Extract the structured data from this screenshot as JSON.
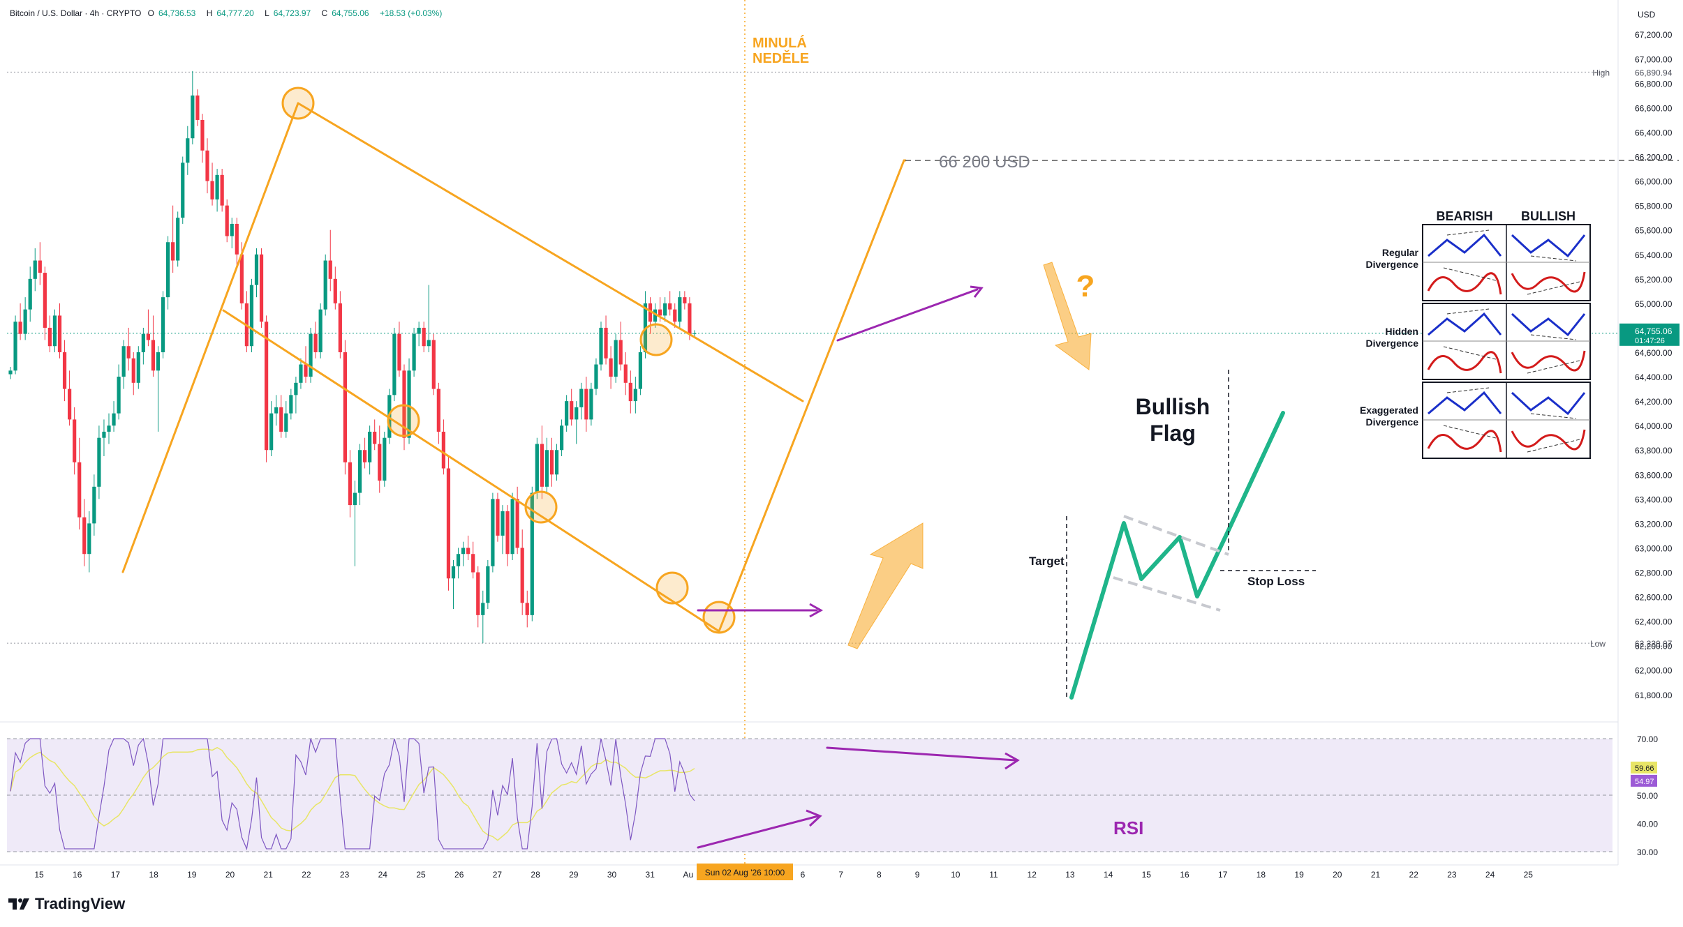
{
  "header": {
    "symbol": "Bitcoin / U.S. Dollar · 4h · CRYPTO",
    "open_label": "O",
    "open": "64,736.53",
    "high_label": "H",
    "high": "64,777.20",
    "low_label": "L",
    "low": "64,723.97",
    "close_label": "C",
    "close": "64,755.06",
    "change": "+18.53 (+0.03%)"
  },
  "colors": {
    "up": "#089981",
    "down": "#f23645",
    "orange": "#f7a520",
    "purple": "#9c27b0",
    "green_path": "#1fb58a",
    "rsi_line": "#7e57c2",
    "rsi_ma": "#e8e566",
    "rsi_band": "#efeaf8"
  },
  "axis": {
    "currency": "USD",
    "price_ticks": [
      "67,200.00",
      "67,000.00",
      "66,800.00",
      "66,600.00",
      "66,400.00",
      "66,200.00",
      "66,000.00",
      "65,800.00",
      "65,600.00",
      "65,400.00",
      "65,200.00",
      "65,000.00",
      "64,800.00",
      "64,600.00",
      "64,400.00",
      "64,200.00",
      "64,000.00",
      "63,800.00",
      "63,600.00",
      "63,400.00",
      "63,200.00",
      "63,000.00",
      "62,800.00",
      "62,600.00",
      "62,400.00",
      "62,200.00",
      "62,000.00",
      "61,800.00"
    ],
    "high_label": "High",
    "high_value": "66,890.94",
    "low_label": "Low",
    "low_value": "62,220.07",
    "current_price": "64,755.06",
    "countdown": "01:47:26",
    "rsi_ticks": [
      "70.00",
      "50.00",
      "40.00",
      "30.00"
    ],
    "rsi_value": "59.66",
    "rsi_ma_value": "54.97",
    "date_ticks": [
      "15",
      "16",
      "17",
      "18",
      "19",
      "20",
      "21",
      "22",
      "23",
      "24",
      "25",
      "26",
      "27",
      "28",
      "29",
      "30",
      "31",
      "Au",
      "4",
      "5",
      "6",
      "7",
      "8",
      "9",
      "10",
      "11",
      "12",
      "13",
      "14",
      "15",
      "16",
      "17",
      "18",
      "19",
      "20",
      "21",
      "22",
      "23",
      "24",
      "25"
    ],
    "crosshair_date": "Sun 02 Aug '26   10:00"
  },
  "annotations": {
    "last_sunday": [
      "MINULÁ",
      "NEDĚLE"
    ],
    "target_price": "66 200 USD",
    "question": "?",
    "bullish_flag": [
      "Bullish",
      "Flag"
    ],
    "target": "Target",
    "stop_loss": "Stop Loss",
    "rsi": "RSI"
  },
  "divergence_table": {
    "columns": [
      "BEARISH",
      "BULLISH"
    ],
    "rows": [
      [
        "Regular",
        "Divergence"
      ],
      [
        "Hidden",
        "Divergence"
      ],
      [
        "Exaggerated",
        "Divergence"
      ]
    ]
  },
  "brand": "TradingView",
  "chart_data": {
    "type": "candlestick",
    "title": "Bitcoin / U.S. Dollar · 4h · CRYPTO",
    "ylabel": "USD",
    "ylim": [
      61750,
      67300
    ],
    "candles": [
      [
        64420,
        64480,
        64380,
        64450
      ],
      [
        64450,
        64900,
        64420,
        64850
      ],
      [
        64850,
        65000,
        64700,
        64750
      ],
      [
        64750,
        65050,
        64700,
        64950
      ],
      [
        64950,
        65300,
        64850,
        65200
      ],
      [
        65200,
        65450,
        65100,
        65350
      ],
      [
        65350,
        65500,
        65150,
        65250
      ],
      [
        65250,
        65300,
        64700,
        64800
      ],
      [
        64800,
        64900,
        64600,
        64650
      ],
      [
        64650,
        64950,
        64600,
        64900
      ],
      [
        64900,
        65000,
        64550,
        64600
      ],
      [
        64600,
        64700,
        64200,
        64300
      ],
      [
        64300,
        64450,
        64000,
        64050
      ],
      [
        64050,
        64150,
        63600,
        63700
      ],
      [
        63700,
        63900,
        63150,
        63250
      ],
      [
        63250,
        63400,
        62850,
        62950
      ],
      [
        62950,
        63300,
        62800,
        63200
      ],
      [
        63200,
        63600,
        63100,
        63500
      ],
      [
        63500,
        64000,
        63400,
        63900
      ],
      [
        63900,
        64050,
        63750,
        63950
      ],
      [
        63950,
        64100,
        63850,
        64000
      ],
      [
        64000,
        64200,
        63950,
        64100
      ],
      [
        64100,
        64500,
        64050,
        64400
      ],
      [
        64400,
        64700,
        64300,
        64650
      ],
      [
        64650,
        64800,
        64450,
        64550
      ],
      [
        64550,
        64600,
        64250,
        64350
      ],
      [
        64350,
        64650,
        64300,
        64600
      ],
      [
        64600,
        64800,
        64500,
        64750
      ],
      [
        64750,
        64950,
        64650,
        64700
      ],
      [
        64700,
        64900,
        64400,
        64450
      ],
      [
        64450,
        64650,
        63950,
        64600
      ],
      [
        64600,
        65100,
        64550,
        65050
      ],
      [
        65050,
        65550,
        64950,
        65500
      ],
      [
        65500,
        65800,
        65250,
        65350
      ],
      [
        65350,
        65750,
        65300,
        65700
      ],
      [
        65700,
        66200,
        65650,
        66150
      ],
      [
        66150,
        66450,
        66050,
        66350
      ],
      [
        66350,
        66900,
        66300,
        66700
      ],
      [
        66700,
        66750,
        66450,
        66500
      ],
      [
        66500,
        66550,
        66150,
        66250
      ],
      [
        66250,
        66350,
        65900,
        66000
      ],
      [
        66000,
        66150,
        65800,
        65850
      ],
      [
        65850,
        66100,
        65750,
        66050
      ],
      [
        66050,
        66100,
        65750,
        65800
      ],
      [
        65800,
        65850,
        65500,
        65550
      ],
      [
        65550,
        65700,
        65450,
        65650
      ],
      [
        65650,
        65700,
        65300,
        65400
      ],
      [
        65400,
        65500,
        64950,
        65000
      ],
      [
        65000,
        65100,
        64600,
        64650
      ],
      [
        64650,
        65200,
        64600,
        65150
      ],
      [
        65150,
        65450,
        65050,
        65400
      ],
      [
        65400,
        65450,
        64800,
        64850
      ],
      [
        64850,
        64900,
        63700,
        63800
      ],
      [
        63800,
        64200,
        63750,
        64100
      ],
      [
        64100,
        64250,
        64000,
        64150
      ],
      [
        64150,
        64250,
        63900,
        63950
      ],
      [
        63950,
        64200,
        63900,
        64100
      ],
      [
        64100,
        64300,
        64050,
        64250
      ],
      [
        64250,
        64400,
        64100,
        64350
      ],
      [
        64350,
        64550,
        64300,
        64500
      ],
      [
        64500,
        64650,
        64350,
        64400
      ],
      [
        64400,
        64800,
        64350,
        64750
      ],
      [
        64750,
        64850,
        64550,
        64600
      ],
      [
        64600,
        65000,
        64550,
        64950
      ],
      [
        64950,
        65400,
        64900,
        65350
      ],
      [
        65350,
        65600,
        65100,
        65200
      ],
      [
        65200,
        65300,
        64950,
        65000
      ],
      [
        65000,
        65100,
        64550,
        64600
      ],
      [
        64600,
        64700,
        63600,
        63700
      ],
      [
        63700,
        63800,
        63250,
        63350
      ],
      [
        63350,
        63550,
        62850,
        63450
      ],
      [
        63450,
        63850,
        63350,
        63800
      ],
      [
        63800,
        63900,
        63650,
        63700
      ],
      [
        63700,
        64000,
        63600,
        63950
      ],
      [
        63950,
        64050,
        63800,
        63850
      ],
      [
        63850,
        64000,
        63450,
        63550
      ],
      [
        63550,
        63950,
        63500,
        63900
      ],
      [
        63900,
        64300,
        63850,
        64250
      ],
      [
        64250,
        64800,
        64200,
        64750
      ],
      [
        64750,
        64850,
        64400,
        64450
      ],
      [
        64450,
        64500,
        63800,
        63900
      ],
      [
        63900,
        64550,
        63850,
        64450
      ],
      [
        64450,
        64800,
        64400,
        64750
      ],
      [
        64750,
        64850,
        64650,
        64800
      ],
      [
        64800,
        64850,
        64600,
        64650
      ],
      [
        64650,
        65150,
        64600,
        64700
      ],
      [
        64700,
        64750,
        64250,
        64300
      ],
      [
        64300,
        64350,
        63850,
        63950
      ],
      [
        63950,
        64050,
        63600,
        63650
      ],
      [
        63650,
        63750,
        62650,
        62750
      ],
      [
        62750,
        62900,
        62500,
        62850
      ],
      [
        62850,
        63000,
        62750,
        62950
      ],
      [
        62950,
        63050,
        62850,
        63000
      ],
      [
        63000,
        63100,
        62900,
        62950
      ],
      [
        62950,
        63050,
        62750,
        62800
      ],
      [
        62800,
        62850,
        62350,
        62450
      ],
      [
        62450,
        62650,
        62220,
        62550
      ],
      [
        62550,
        62900,
        62500,
        62850
      ],
      [
        62850,
        63450,
        62800,
        63400
      ],
      [
        63400,
        63450,
        63050,
        63100
      ],
      [
        63100,
        63350,
        62950,
        63300
      ],
      [
        63300,
        63350,
        62850,
        62950
      ],
      [
        62950,
        63450,
        62900,
        63400
      ],
      [
        63400,
        63500,
        62950,
        63000
      ],
      [
        63000,
        63150,
        62450,
        62550
      ],
      [
        62550,
        62650,
        62350,
        62450
      ],
      [
        62450,
        63500,
        62400,
        63450
      ],
      [
        63450,
        63900,
        63400,
        63850
      ],
      [
        63850,
        64000,
        63400,
        63500
      ],
      [
        63500,
        63900,
        63450,
        63800
      ],
      [
        63800,
        63900,
        63500,
        63600
      ],
      [
        63600,
        63850,
        63550,
        63800
      ],
      [
        63800,
        64050,
        63750,
        64000
      ],
      [
        64000,
        64250,
        63950,
        64200
      ],
      [
        64200,
        64300,
        64000,
        64050
      ],
      [
        64050,
        64200,
        63850,
        64150
      ],
      [
        64150,
        64350,
        64050,
        64300
      ],
      [
        64300,
        64400,
        63950,
        64050
      ],
      [
        64050,
        64350,
        64000,
        64300
      ],
      [
        64300,
        64550,
        64250,
        64500
      ],
      [
        64500,
        64850,
        64450,
        64800
      ],
      [
        64800,
        64900,
        64500,
        64550
      ],
      [
        64550,
        64650,
        64300,
        64400
      ],
      [
        64400,
        64750,
        64350,
        64700
      ],
      [
        64700,
        64850,
        64450,
        64500
      ],
      [
        64500,
        64600,
        64250,
        64350
      ],
      [
        64350,
        64450,
        64100,
        64200
      ],
      [
        64200,
        64400,
        64100,
        64300
      ],
      [
        64300,
        64650,
        64250,
        64600
      ],
      [
        64600,
        65100,
        64550,
        65000
      ],
      [
        65000,
        65050,
        64750,
        64850
      ],
      [
        64850,
        65000,
        64800,
        64950
      ],
      [
        64950,
        65050,
        64850,
        64900
      ],
      [
        64900,
        65050,
        64850,
        65000
      ],
      [
        65000,
        65100,
        64900,
        64950
      ],
      [
        64950,
        65000,
        64800,
        64850
      ],
      [
        64850,
        65100,
        64800,
        65050
      ],
      [
        65050,
        65100,
        64950,
        65000
      ],
      [
        65000,
        65050,
        64700,
        64750
      ],
      [
        64750,
        64780,
        64720,
        64755
      ]
    ],
    "rsi": {
      "ylim": [
        28,
        72
      ],
      "overbought": 70,
      "oversold": 30,
      "mid": 50,
      "last": 59.66,
      "ma_last": 54.97
    }
  }
}
